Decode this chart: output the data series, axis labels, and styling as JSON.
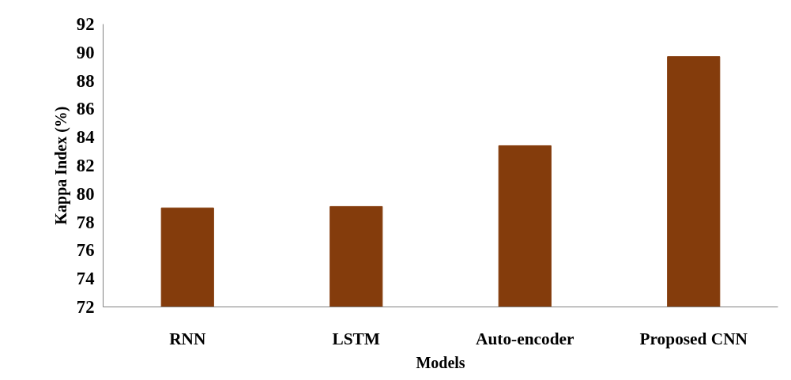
{
  "chart_data": {
    "type": "bar",
    "xlabel": "Models",
    "ylabel": "Kappa Index (%)",
    "categories": [
      "RNN",
      "LSTM",
      "Auto-encoder",
      "Proposed CNN"
    ],
    "values": [
      79.0,
      79.1,
      83.4,
      89.7
    ],
    "color": "#843c0c",
    "ylim": [
      72,
      92
    ],
    "yticks": [
      72,
      74,
      76,
      78,
      80,
      82,
      84,
      86,
      88,
      90,
      92
    ],
    "grid": false
  }
}
